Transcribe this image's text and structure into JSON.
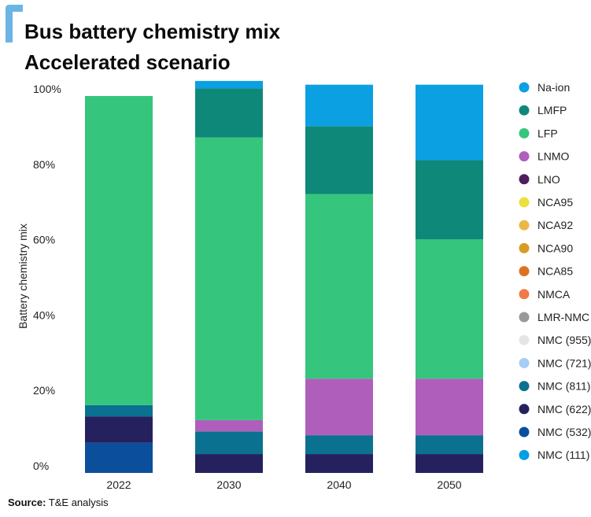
{
  "header": {
    "title_line1": "Bus battery chemistry mix",
    "title_line2": "Accelerated scenario"
  },
  "footer": {
    "source_label": "Source:",
    "source_text": "T&E analysis"
  },
  "chart_data": {
    "type": "bar",
    "stacked": true,
    "orientation": "vertical",
    "ylabel": "Battery chemistry mix",
    "xlabel": "",
    "ylim": [
      0,
      100
    ],
    "y_unit": "%",
    "y_ticks": [
      "0%",
      "20%",
      "40%",
      "60%",
      "80%",
      "100%"
    ],
    "y_tick_values": [
      0,
      20,
      40,
      60,
      80,
      100
    ],
    "grid": false,
    "legend_position": "right",
    "categories": [
      "2022",
      "2030",
      "2040",
      "2050"
    ],
    "series": [
      {
        "name": "NMC (111)",
        "color": "#009fe3",
        "values": [
          0,
          0,
          0,
          0
        ]
      },
      {
        "name": "NMC (532)",
        "color": "#0b4f9c",
        "values": [
          8,
          0,
          0,
          0
        ]
      },
      {
        "name": "NMC (622)",
        "color": "#25215f",
        "values": [
          7,
          5,
          5,
          5
        ]
      },
      {
        "name": "NMC (811)",
        "color": "#0a7191",
        "values": [
          3,
          6,
          5,
          5
        ]
      },
      {
        "name": "NMC (721)",
        "color": "#a6cdf3",
        "values": [
          0,
          0,
          0,
          0
        ]
      },
      {
        "name": "NMC (955)",
        "color": "#e5e5e5",
        "values": [
          0,
          0,
          0,
          0
        ]
      },
      {
        "name": "LMR-NMC",
        "color": "#999999",
        "values": [
          0,
          0,
          0,
          0
        ]
      },
      {
        "name": "NMCA",
        "color": "#f07a45",
        "values": [
          0,
          0,
          0,
          0
        ]
      },
      {
        "name": "NCA85",
        "color": "#dc7322",
        "values": [
          0,
          0,
          0,
          0
        ]
      },
      {
        "name": "NCA90",
        "color": "#d99b26",
        "values": [
          0,
          0,
          0,
          0
        ]
      },
      {
        "name": "NCA92",
        "color": "#eab846",
        "values": [
          0,
          0,
          0,
          0
        ]
      },
      {
        "name": "NCA95",
        "color": "#ece03f",
        "values": [
          0,
          0,
          0,
          0
        ]
      },
      {
        "name": "LNO",
        "color": "#4f1e5c",
        "values": [
          0,
          0,
          0,
          0
        ]
      },
      {
        "name": "LNMO",
        "color": "#b05ebb",
        "values": [
          0,
          3,
          15,
          15
        ]
      },
      {
        "name": "LFP",
        "color": "#36c57c",
        "values": [
          82,
          75,
          49,
          37
        ]
      },
      {
        "name": "LMFP",
        "color": "#0e8878",
        "values": [
          0,
          13,
          18,
          21
        ]
      },
      {
        "name": "Na-ion",
        "color": "#0aa0e2",
        "values": [
          0,
          2,
          11,
          20
        ]
      }
    ]
  }
}
